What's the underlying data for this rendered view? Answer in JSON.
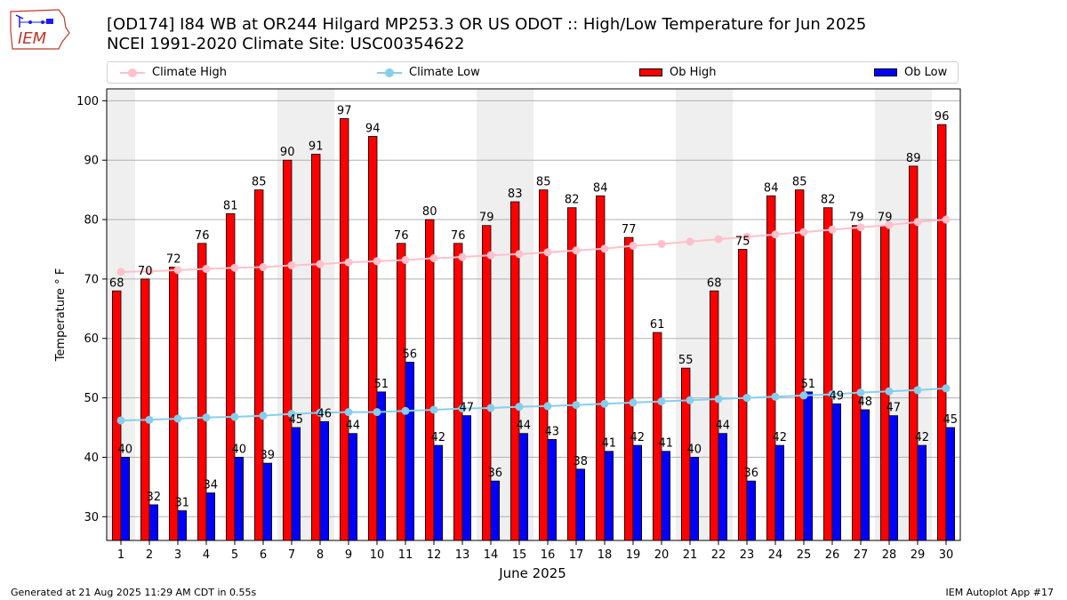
{
  "header": {
    "logo_text": "IEM",
    "title_line1": "[OD174] I84 WB at OR244 Hilgard MP253.3  OR US ODOT :: High/Low Temperature for Jun 2025",
    "title_line2": "NCEI 1991-2020 Climate Site: USC00354622"
  },
  "footer": {
    "generated": "Generated at 21 Aug 2025 11:29 AM CDT in 0.55s",
    "app": "IEM Autoplot App #17"
  },
  "colors": {
    "ob_high": "#ff0000",
    "ob_low": "#0000ff",
    "climate_high": "#ffc0cb",
    "climate_low": "#87ceeb",
    "weekend_shade": "#efefef",
    "grid": "#b0b0b0"
  },
  "chart_data": {
    "type": "bar",
    "xlabel": "June 2025",
    "ylabel": "Temperature ° F",
    "ylim": [
      26,
      102
    ],
    "yticks": [
      30,
      40,
      50,
      60,
      70,
      80,
      90,
      100
    ],
    "grid": true,
    "legend_position": "top",
    "categories": [
      "1",
      "2",
      "3",
      "4",
      "5",
      "6",
      "7",
      "8",
      "9",
      "10",
      "11",
      "12",
      "13",
      "14",
      "15",
      "16",
      "17",
      "18",
      "19",
      "20",
      "21",
      "22",
      "23",
      "24",
      "25",
      "26",
      "27",
      "28",
      "29",
      "30"
    ],
    "shaded_days": [
      1,
      7,
      8,
      14,
      15,
      21,
      22,
      28,
      29
    ],
    "series": [
      {
        "name": "Ob High",
        "kind": "bar",
        "values": [
          68,
          70,
          72,
          76,
          81,
          85,
          90,
          91,
          97,
          94,
          76,
          80,
          76,
          79,
          83,
          85,
          82,
          84,
          77,
          61,
          55,
          68,
          75,
          84,
          85,
          82,
          79,
          79,
          89,
          96
        ]
      },
      {
        "name": "Ob Low",
        "kind": "bar",
        "values": [
          40,
          32,
          31,
          34,
          40,
          39,
          45,
          46,
          44,
          51,
          56,
          42,
          47,
          36,
          44,
          43,
          38,
          41,
          42,
          41,
          40,
          44,
          36,
          42,
          51,
          49,
          48,
          47,
          42,
          45
        ]
      },
      {
        "name": "Climate High",
        "kind": "line",
        "values": [
          71.2,
          71.3,
          71.5,
          71.7,
          71.9,
          72.0,
          72.3,
          72.5,
          72.8,
          73.0,
          73.2,
          73.5,
          73.7,
          74.0,
          74.2,
          74.5,
          74.8,
          75.1,
          75.6,
          75.9,
          76.3,
          76.7,
          77.1,
          77.5,
          77.9,
          78.3,
          78.7,
          79.1,
          79.6,
          80.0
        ]
      },
      {
        "name": "Climate Low",
        "kind": "line",
        "values": [
          46.2,
          46.3,
          46.5,
          46.7,
          46.8,
          47.0,
          47.3,
          47.5,
          47.6,
          47.6,
          47.8,
          48.0,
          48.2,
          48.3,
          48.5,
          48.6,
          48.8,
          49.0,
          49.2,
          49.4,
          49.6,
          49.8,
          50.0,
          50.2,
          50.4,
          50.6,
          50.9,
          51.1,
          51.3,
          51.6
        ]
      }
    ]
  }
}
